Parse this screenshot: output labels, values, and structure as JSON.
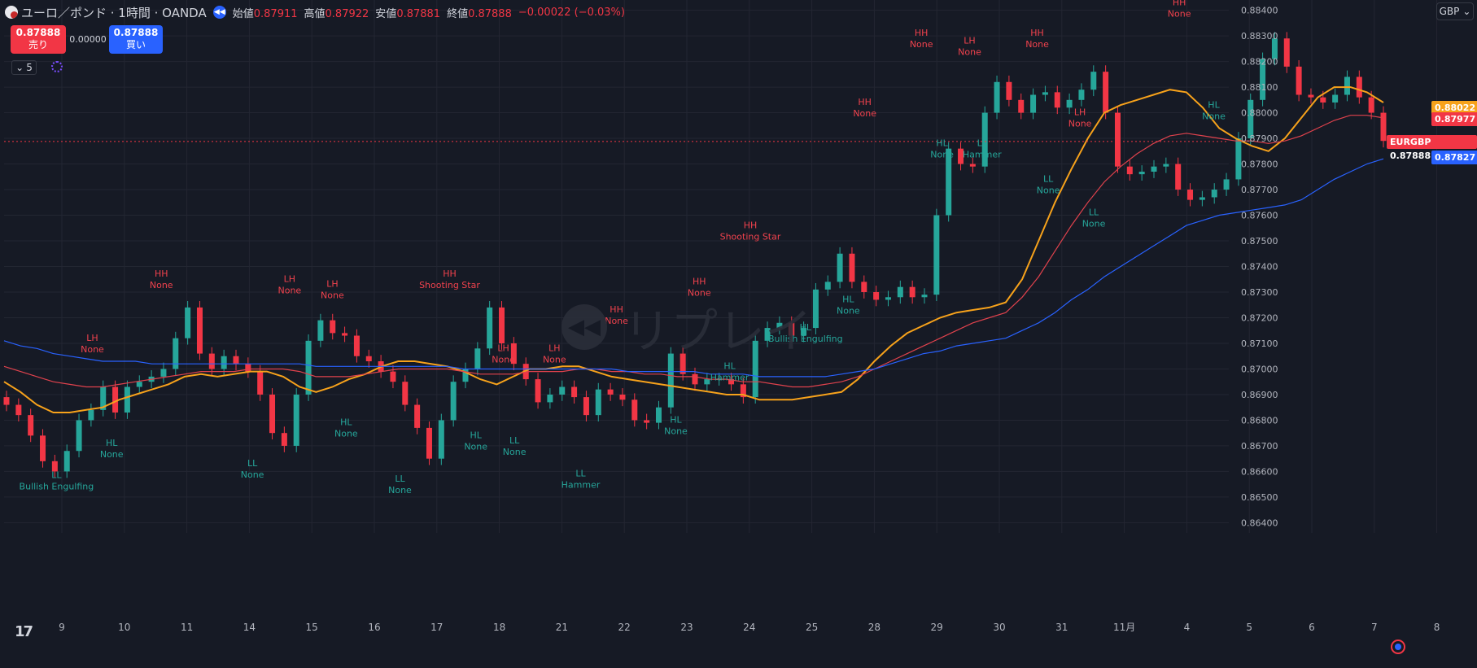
{
  "header": {
    "title": "ユーロ／ポンド · 1時間 · OANDA",
    "open_label": "始値",
    "open": "0.87911",
    "high_label": "高値",
    "high": "0.87922",
    "low_label": "安値",
    "low": "0.87881",
    "close_label": "終値",
    "close": "0.87888",
    "change": "−0.00022 (−0.03%)",
    "replay_icon": "rewind-icon",
    "symbol_icon": "eur-gbp-flag-icon"
  },
  "trade": {
    "sell_price": "0.87888",
    "sell_label": "売り",
    "spread": "0.00000",
    "buy_price": "0.87888",
    "buy_label": "買い"
  },
  "indicators": {
    "count": "5",
    "toggle_icon": "chevron-down-icon"
  },
  "currency_select": {
    "value": "GBP"
  },
  "watermark": {
    "text": "リプレイ"
  },
  "colors": {
    "bg": "#161a25",
    "up": "#26a69a",
    "down": "#f23645",
    "ema_orange": "#f7a21b",
    "ema_red": "#e0424d",
    "ema_blue": "#2962ff",
    "grid": "#232632",
    "label_high": "#f0424d",
    "label_low": "#26a69a"
  },
  "price_tags": [
    {
      "value": "0.88022",
      "color": "#f7a21b"
    },
    {
      "value": "0.87977",
      "color": "#f23645"
    },
    {
      "symbol": "EURGBP",
      "value": "0.87888",
      "color": "#f23645"
    },
    {
      "value": "0.87827",
      "color": "#2962ff"
    }
  ],
  "chart_data": {
    "type": "line",
    "symbol": "EURGBP",
    "y_ticks": [
      "0.86400",
      "0.86500",
      "0.86600",
      "0.86700",
      "0.86800",
      "0.86900",
      "0.87000",
      "0.87100",
      "0.87200",
      "0.87300",
      "0.87400",
      "0.87500",
      "0.87600",
      "0.87700",
      "0.87800",
      "0.87900",
      "0.88000",
      "0.88100",
      "0.88200",
      "0.88300",
      "0.88400"
    ],
    "ylim": [
      0.8636,
      0.8844
    ],
    "x_ticks": [
      "9",
      "10",
      "11",
      "14",
      "15",
      "16",
      "17",
      "18",
      "21",
      "22",
      "23",
      "24",
      "25",
      "28",
      "29",
      "30",
      "31",
      "11月",
      "4",
      "5",
      "6",
      "7",
      "8"
    ],
    "current_price": 0.87888,
    "close_series": [
      0.8686,
      0.8682,
      0.8674,
      0.8664,
      0.866,
      0.8668,
      0.868,
      0.8684,
      0.8693,
      0.8683,
      0.8693,
      0.8695,
      0.8697,
      0.87,
      0.8712,
      0.8724,
      0.8706,
      0.87,
      0.8705,
      0.8702,
      0.8699,
      0.869,
      0.8675,
      0.867,
      0.869,
      0.8711,
      0.8719,
      0.8714,
      0.8713,
      0.8705,
      0.8703,
      0.8699,
      0.8695,
      0.8686,
      0.8677,
      0.8665,
      0.868,
      0.8695,
      0.87,
      0.8708,
      0.8724,
      0.871,
      0.8702,
      0.8696,
      0.8687,
      0.869,
      0.8693,
      0.8689,
      0.8682,
      0.8692,
      0.869,
      0.8688,
      0.868,
      0.8679,
      0.8685,
      0.8706,
      0.8698,
      0.8694,
      0.8696,
      0.8696,
      0.8694,
      0.8689,
      0.8711,
      0.8716,
      0.8718,
      0.8713,
      0.8716,
      0.8731,
      0.8734,
      0.8745,
      0.8734,
      0.873,
      0.8727,
      0.8728,
      0.8732,
      0.8728,
      0.8729,
      0.876,
      0.8786,
      0.878,
      0.8779,
      0.88,
      0.8812,
      0.8805,
      0.88,
      0.8807,
      0.8808,
      0.8802,
      0.8805,
      0.8809,
      0.8816,
      0.88,
      0.8779,
      0.8776,
      0.8777,
      0.8779,
      0.878,
      0.877,
      0.8766,
      0.8767,
      0.877,
      0.8774,
      0.879,
      0.8805,
      0.8821,
      0.8829,
      0.8818,
      0.8807,
      0.8806,
      0.8804,
      0.8807,
      0.8814,
      0.8806,
      0.88,
      0.8789
    ],
    "series": [
      {
        "name": "EMA orange",
        "color": "#f7a21b",
        "values": [
          0.8695,
          0.8691,
          0.8686,
          0.8683,
          0.8683,
          0.8684,
          0.8685,
          0.8688,
          0.869,
          0.8692,
          0.8694,
          0.8697,
          0.8698,
          0.8697,
          0.8698,
          0.8699,
          0.8699,
          0.8697,
          0.8693,
          0.8691,
          0.8693,
          0.8696,
          0.8698,
          0.8701,
          0.8703,
          0.8703,
          0.8702,
          0.8701,
          0.8699,
          0.8696,
          0.8694,
          0.8697,
          0.87,
          0.87,
          0.8701,
          0.8701,
          0.8699,
          0.8697,
          0.8696,
          0.8695,
          0.8694,
          0.8693,
          0.8692,
          0.8691,
          0.869,
          0.869,
          0.8688,
          0.8688,
          0.8688,
          0.8689,
          0.869,
          0.8691,
          0.8696,
          0.8703,
          0.8709,
          0.8714,
          0.8717,
          0.872,
          0.8722,
          0.8723,
          0.8724,
          0.8726,
          0.8735,
          0.875,
          0.8765,
          0.8778,
          0.879,
          0.88,
          0.8803,
          0.8805,
          0.8807,
          0.8809,
          0.8808,
          0.8802,
          0.8794,
          0.879,
          0.8787,
          0.8785,
          0.879,
          0.8798,
          0.8806,
          0.881,
          0.881,
          0.8808,
          0.8804
        ]
      },
      {
        "name": "EMA red",
        "color": "#e0424d",
        "values": [
          0.8701,
          0.8699,
          0.8697,
          0.8695,
          0.8694,
          0.8693,
          0.8693,
          0.8694,
          0.8695,
          0.8696,
          0.8697,
          0.8698,
          0.8699,
          0.8699,
          0.8699,
          0.87,
          0.87,
          0.87,
          0.8699,
          0.8697,
          0.8697,
          0.8697,
          0.8698,
          0.8699,
          0.87,
          0.87,
          0.87,
          0.87,
          0.8699,
          0.8698,
          0.8698,
          0.8698,
          0.8699,
          0.8699,
          0.8699,
          0.87,
          0.87,
          0.8699,
          0.8699,
          0.8698,
          0.8698,
          0.8697,
          0.8697,
          0.8696,
          0.8696,
          0.8695,
          0.8695,
          0.8694,
          0.8693,
          0.8693,
          0.8694,
          0.8695,
          0.8697,
          0.87,
          0.8703,
          0.8706,
          0.8709,
          0.8712,
          0.8715,
          0.8718,
          0.872,
          0.8722,
          0.8728,
          0.8736,
          0.8746,
          0.8756,
          0.8765,
          0.8773,
          0.8779,
          0.8784,
          0.8788,
          0.8791,
          0.8792,
          0.8791,
          0.879,
          0.8789,
          0.8789,
          0.8788,
          0.8789,
          0.8791,
          0.8794,
          0.8797,
          0.8799,
          0.8799,
          0.8798
        ]
      },
      {
        "name": "EMA blue",
        "color": "#2962ff",
        "values": [
          0.8711,
          0.8709,
          0.8708,
          0.8706,
          0.8705,
          0.8704,
          0.8703,
          0.8703,
          0.8703,
          0.8702,
          0.8702,
          0.8702,
          0.8702,
          0.8702,
          0.8702,
          0.8702,
          0.8702,
          0.8702,
          0.8702,
          0.8701,
          0.8701,
          0.8701,
          0.8701,
          0.8701,
          0.8701,
          0.8701,
          0.8701,
          0.8701,
          0.87,
          0.87,
          0.87,
          0.87,
          0.87,
          0.87,
          0.87,
          0.87,
          0.87,
          0.87,
          0.8699,
          0.8699,
          0.8699,
          0.8699,
          0.8699,
          0.8698,
          0.8698,
          0.8698,
          0.8697,
          0.8697,
          0.8697,
          0.8697,
          0.8697,
          0.8698,
          0.8699,
          0.87,
          0.8702,
          0.8704,
          0.8706,
          0.8707,
          0.8709,
          0.871,
          0.8711,
          0.8712,
          0.8715,
          0.8718,
          0.8722,
          0.8727,
          0.8731,
          0.8736,
          0.874,
          0.8744,
          0.8748,
          0.8752,
          0.8756,
          0.8758,
          0.876,
          0.8761,
          0.8762,
          0.8763,
          0.8764,
          0.8766,
          0.877,
          0.8774,
          0.8777,
          0.878,
          0.8782
        ]
      }
    ],
    "annotations": [
      {
        "text": [
          "LL",
          "Bullish Engulfing"
        ],
        "kind": "low",
        "x": 0.038,
        "price": 0.86575
      },
      {
        "text": [
          "LH",
          "None"
        ],
        "kind": "high",
        "x": 0.064,
        "price": 0.8711
      },
      {
        "text": [
          "HL",
          "None"
        ],
        "kind": "low",
        "x": 0.078,
        "price": 0.867
      },
      {
        "text": [
          "HH",
          "None"
        ],
        "kind": "high",
        "x": 0.114,
        "price": 0.8736
      },
      {
        "text": [
          "LL",
          "None"
        ],
        "kind": "low",
        "x": 0.18,
        "price": 0.8662
      },
      {
        "text": [
          "LH",
          "None"
        ],
        "kind": "high",
        "x": 0.207,
        "price": 0.8734
      },
      {
        "text": [
          "LH",
          "None"
        ],
        "kind": "high",
        "x": 0.238,
        "price": 0.8732
      },
      {
        "text": [
          "HL",
          "None"
        ],
        "kind": "low",
        "x": 0.248,
        "price": 0.8678
      },
      {
        "text": [
          "LL",
          "None"
        ],
        "kind": "low",
        "x": 0.287,
        "price": 0.8656
      },
      {
        "text": [
          "HH",
          "Shooting Star"
        ],
        "kind": "high",
        "x": 0.323,
        "price": 0.8736
      },
      {
        "text": [
          "HL",
          "None"
        ],
        "kind": "low",
        "x": 0.342,
        "price": 0.8673
      },
      {
        "text": [
          "LH",
          "None"
        ],
        "kind": "high",
        "x": 0.362,
        "price": 0.8707
      },
      {
        "text": [
          "LL",
          "None"
        ],
        "kind": "low",
        "x": 0.37,
        "price": 0.8671
      },
      {
        "text": [
          "LH",
          "None"
        ],
        "kind": "high",
        "x": 0.399,
        "price": 0.8707
      },
      {
        "text": [
          "LL",
          "Hammer"
        ],
        "kind": "low",
        "x": 0.418,
        "price": 0.8658
      },
      {
        "text": [
          "HH",
          "None"
        ],
        "kind": "high",
        "x": 0.444,
        "price": 0.8722
      },
      {
        "text": [
          "HL",
          "None"
        ],
        "kind": "low",
        "x": 0.487,
        "price": 0.8679
      },
      {
        "text": [
          "HH",
          "None"
        ],
        "kind": "high",
        "x": 0.504,
        "price": 0.8733
      },
      {
        "text": [
          "HL",
          "Hammer"
        ],
        "kind": "low",
        "x": 0.526,
        "price": 0.87
      },
      {
        "text": [
          "HH",
          "Shooting Star"
        ],
        "kind": "high",
        "x": 0.541,
        "price": 0.8755
      },
      {
        "text": [
          "HL",
          "Bullish Engulfing"
        ],
        "kind": "low",
        "x": 0.581,
        "price": 0.8715
      },
      {
        "text": [
          "HL",
          "None"
        ],
        "kind": "low",
        "x": 0.612,
        "price": 0.8726
      },
      {
        "text": [
          "HH",
          "None"
        ],
        "kind": "high",
        "x": 0.624,
        "price": 0.8803
      },
      {
        "text": [
          "HH",
          "None"
        ],
        "kind": "high",
        "x": 0.665,
        "price": 0.883
      },
      {
        "text": [
          "HL",
          "None"
        ],
        "kind": "low",
        "x": 0.68,
        "price": 0.8787
      },
      {
        "text": [
          "LH",
          "None"
        ],
        "kind": "high",
        "x": 0.7,
        "price": 0.8827
      },
      {
        "text": [
          "LL",
          "Hammer"
        ],
        "kind": "low",
        "x": 0.709,
        "price": 0.8787
      },
      {
        "text": [
          "HH",
          "None"
        ],
        "kind": "high",
        "x": 0.749,
        "price": 0.883
      },
      {
        "text": [
          "LL",
          "None"
        ],
        "kind": "low",
        "x": 0.757,
        "price": 0.8773
      },
      {
        "text": [
          "LH",
          "None"
        ],
        "kind": "high",
        "x": 0.78,
        "price": 0.8799
      },
      {
        "text": [
          "LL",
          "None"
        ],
        "kind": "low",
        "x": 0.79,
        "price": 0.876
      },
      {
        "text": [
          "HH",
          "None"
        ],
        "kind": "high",
        "x": 0.852,
        "price": 0.8842
      },
      {
        "text": [
          "HL",
          "None"
        ],
        "kind": "low",
        "x": 0.877,
        "price": 0.8802
      }
    ],
    "grid": true
  }
}
